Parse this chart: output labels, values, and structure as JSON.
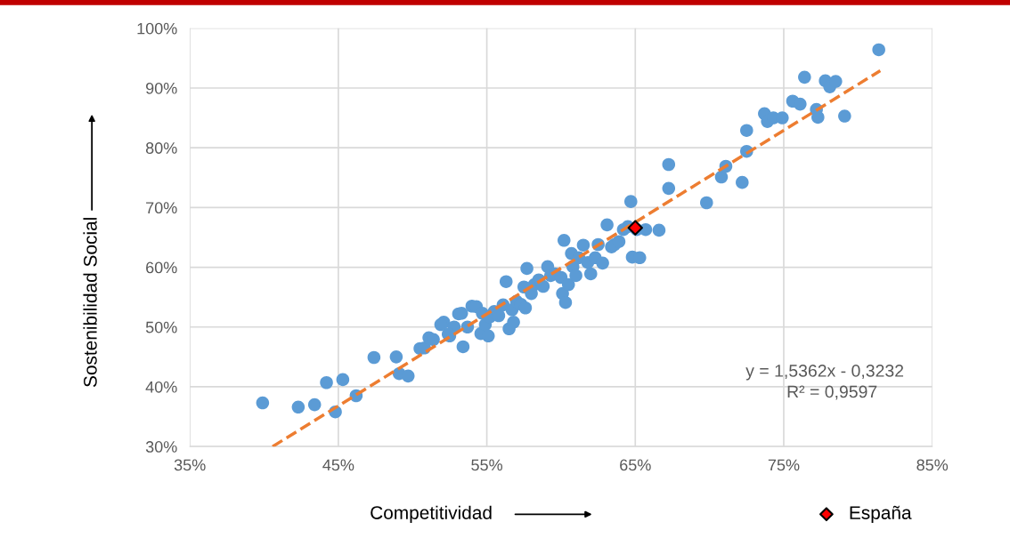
{
  "chart_data": {
    "type": "scatter",
    "xlabel": "Competitividad",
    "ylabel": "Sostenibilidad Social",
    "xlim": [
      0.35,
      0.85
    ],
    "ylim": [
      0.3,
      1.0
    ],
    "xticks": [
      {
        "value": 0.35,
        "label": "35%"
      },
      {
        "value": 0.45,
        "label": "45%"
      },
      {
        "value": 0.55,
        "label": "55%"
      },
      {
        "value": 0.65,
        "label": "65%"
      },
      {
        "value": 0.75,
        "label": "75%"
      },
      {
        "value": 0.85,
        "label": "85%"
      }
    ],
    "yticks": [
      {
        "value": 0.3,
        "label": "30%"
      },
      {
        "value": 0.4,
        "label": "40%"
      },
      {
        "value": 0.5,
        "label": "50%"
      },
      {
        "value": 0.6,
        "label": "60%"
      },
      {
        "value": 0.7,
        "label": "70%"
      },
      {
        "value": 0.8,
        "label": "80%"
      },
      {
        "value": 0.9,
        "label": "90%"
      },
      {
        "value": 1.0,
        "label": "100%"
      }
    ],
    "grid": true,
    "legend": "bottom right",
    "annotations": [
      "y = 1,5362x - 0,3232",
      "R² = 0,9597"
    ],
    "series": [
      {
        "color": "#5b9bd5",
        "marker": "circle",
        "x": [
          0.399,
          0.423,
          0.434,
          0.442,
          0.453,
          0.448,
          0.462,
          0.474,
          0.489,
          0.491,
          0.497,
          0.505,
          0.508,
          0.511,
          0.514,
          0.521,
          0.525,
          0.528,
          0.531,
          0.533,
          0.534,
          0.537,
          0.54,
          0.543,
          0.546,
          0.547,
          0.549,
          0.552,
          0.555,
          0.558,
          0.561,
          0.563,
          0.565,
          0.567,
          0.568,
          0.57,
          0.573,
          0.575,
          0.576,
          0.577,
          0.58,
          0.582,
          0.585,
          0.588,
          0.591,
          0.593,
          0.596,
          0.6,
          0.601,
          0.602,
          0.603,
          0.605,
          0.607,
          0.608,
          0.61,
          0.612,
          0.615,
          0.618,
          0.62,
          0.623,
          0.625,
          0.628,
          0.631,
          0.634,
          0.636,
          0.639,
          0.642,
          0.645,
          0.648,
          0.651,
          0.647,
          0.653,
          0.657,
          0.666,
          0.6725,
          0.6725,
          0.698,
          0.708,
          0.711,
          0.722,
          0.725,
          0.725,
          0.737,
          0.739,
          0.743,
          0.749,
          0.756,
          0.761,
          0.764,
          0.772,
          0.773,
          0.778,
          0.781,
          0.785,
          0.791,
          0.814,
          0.551,
          0.524,
          0.519
        ],
        "values": [
          0.373,
          0.366,
          0.37,
          0.407,
          0.412,
          0.358,
          0.385,
          0.449,
          0.45,
          0.422,
          0.418,
          0.464,
          0.465,
          0.482,
          0.479,
          0.508,
          0.485,
          0.5,
          0.522,
          0.523,
          0.467,
          0.5,
          0.535,
          0.534,
          0.489,
          0.523,
          0.504,
          0.517,
          0.526,
          0.519,
          0.537,
          0.576,
          0.497,
          0.529,
          0.508,
          0.543,
          0.538,
          0.567,
          0.532,
          0.598,
          0.556,
          0.571,
          0.579,
          0.568,
          0.601,
          0.586,
          0.589,
          0.583,
          0.556,
          0.645,
          0.541,
          0.571,
          0.623,
          0.601,
          0.586,
          0.616,
          0.637,
          0.608,
          0.589,
          0.616,
          0.638,
          0.607,
          0.671,
          0.634,
          0.638,
          0.643,
          0.663,
          0.668,
          0.617,
          0.663,
          0.71,
          0.616,
          0.663,
          0.662,
          0.772,
          0.732,
          0.708,
          0.751,
          0.769,
          0.742,
          0.794,
          0.829,
          0.857,
          0.844,
          0.85,
          0.85,
          0.878,
          0.873,
          0.918,
          0.864,
          0.851,
          0.912,
          0.902,
          0.911,
          0.853,
          0.964,
          0.485,
          0.488,
          0.504
        ]
      },
      {
        "type": "line",
        "color": "#ed7d31",
        "line_style": "dashed",
        "marker": "none",
        "x": [
          0.4057,
          0.815
        ],
        "values": [
          0.3,
          0.929
        ]
      },
      {
        "type": "scatter",
        "name": "España",
        "color": "#ff0000",
        "marker": "diamond",
        "x": [
          0.65
        ],
        "values": [
          0.666
        ]
      }
    ]
  }
}
